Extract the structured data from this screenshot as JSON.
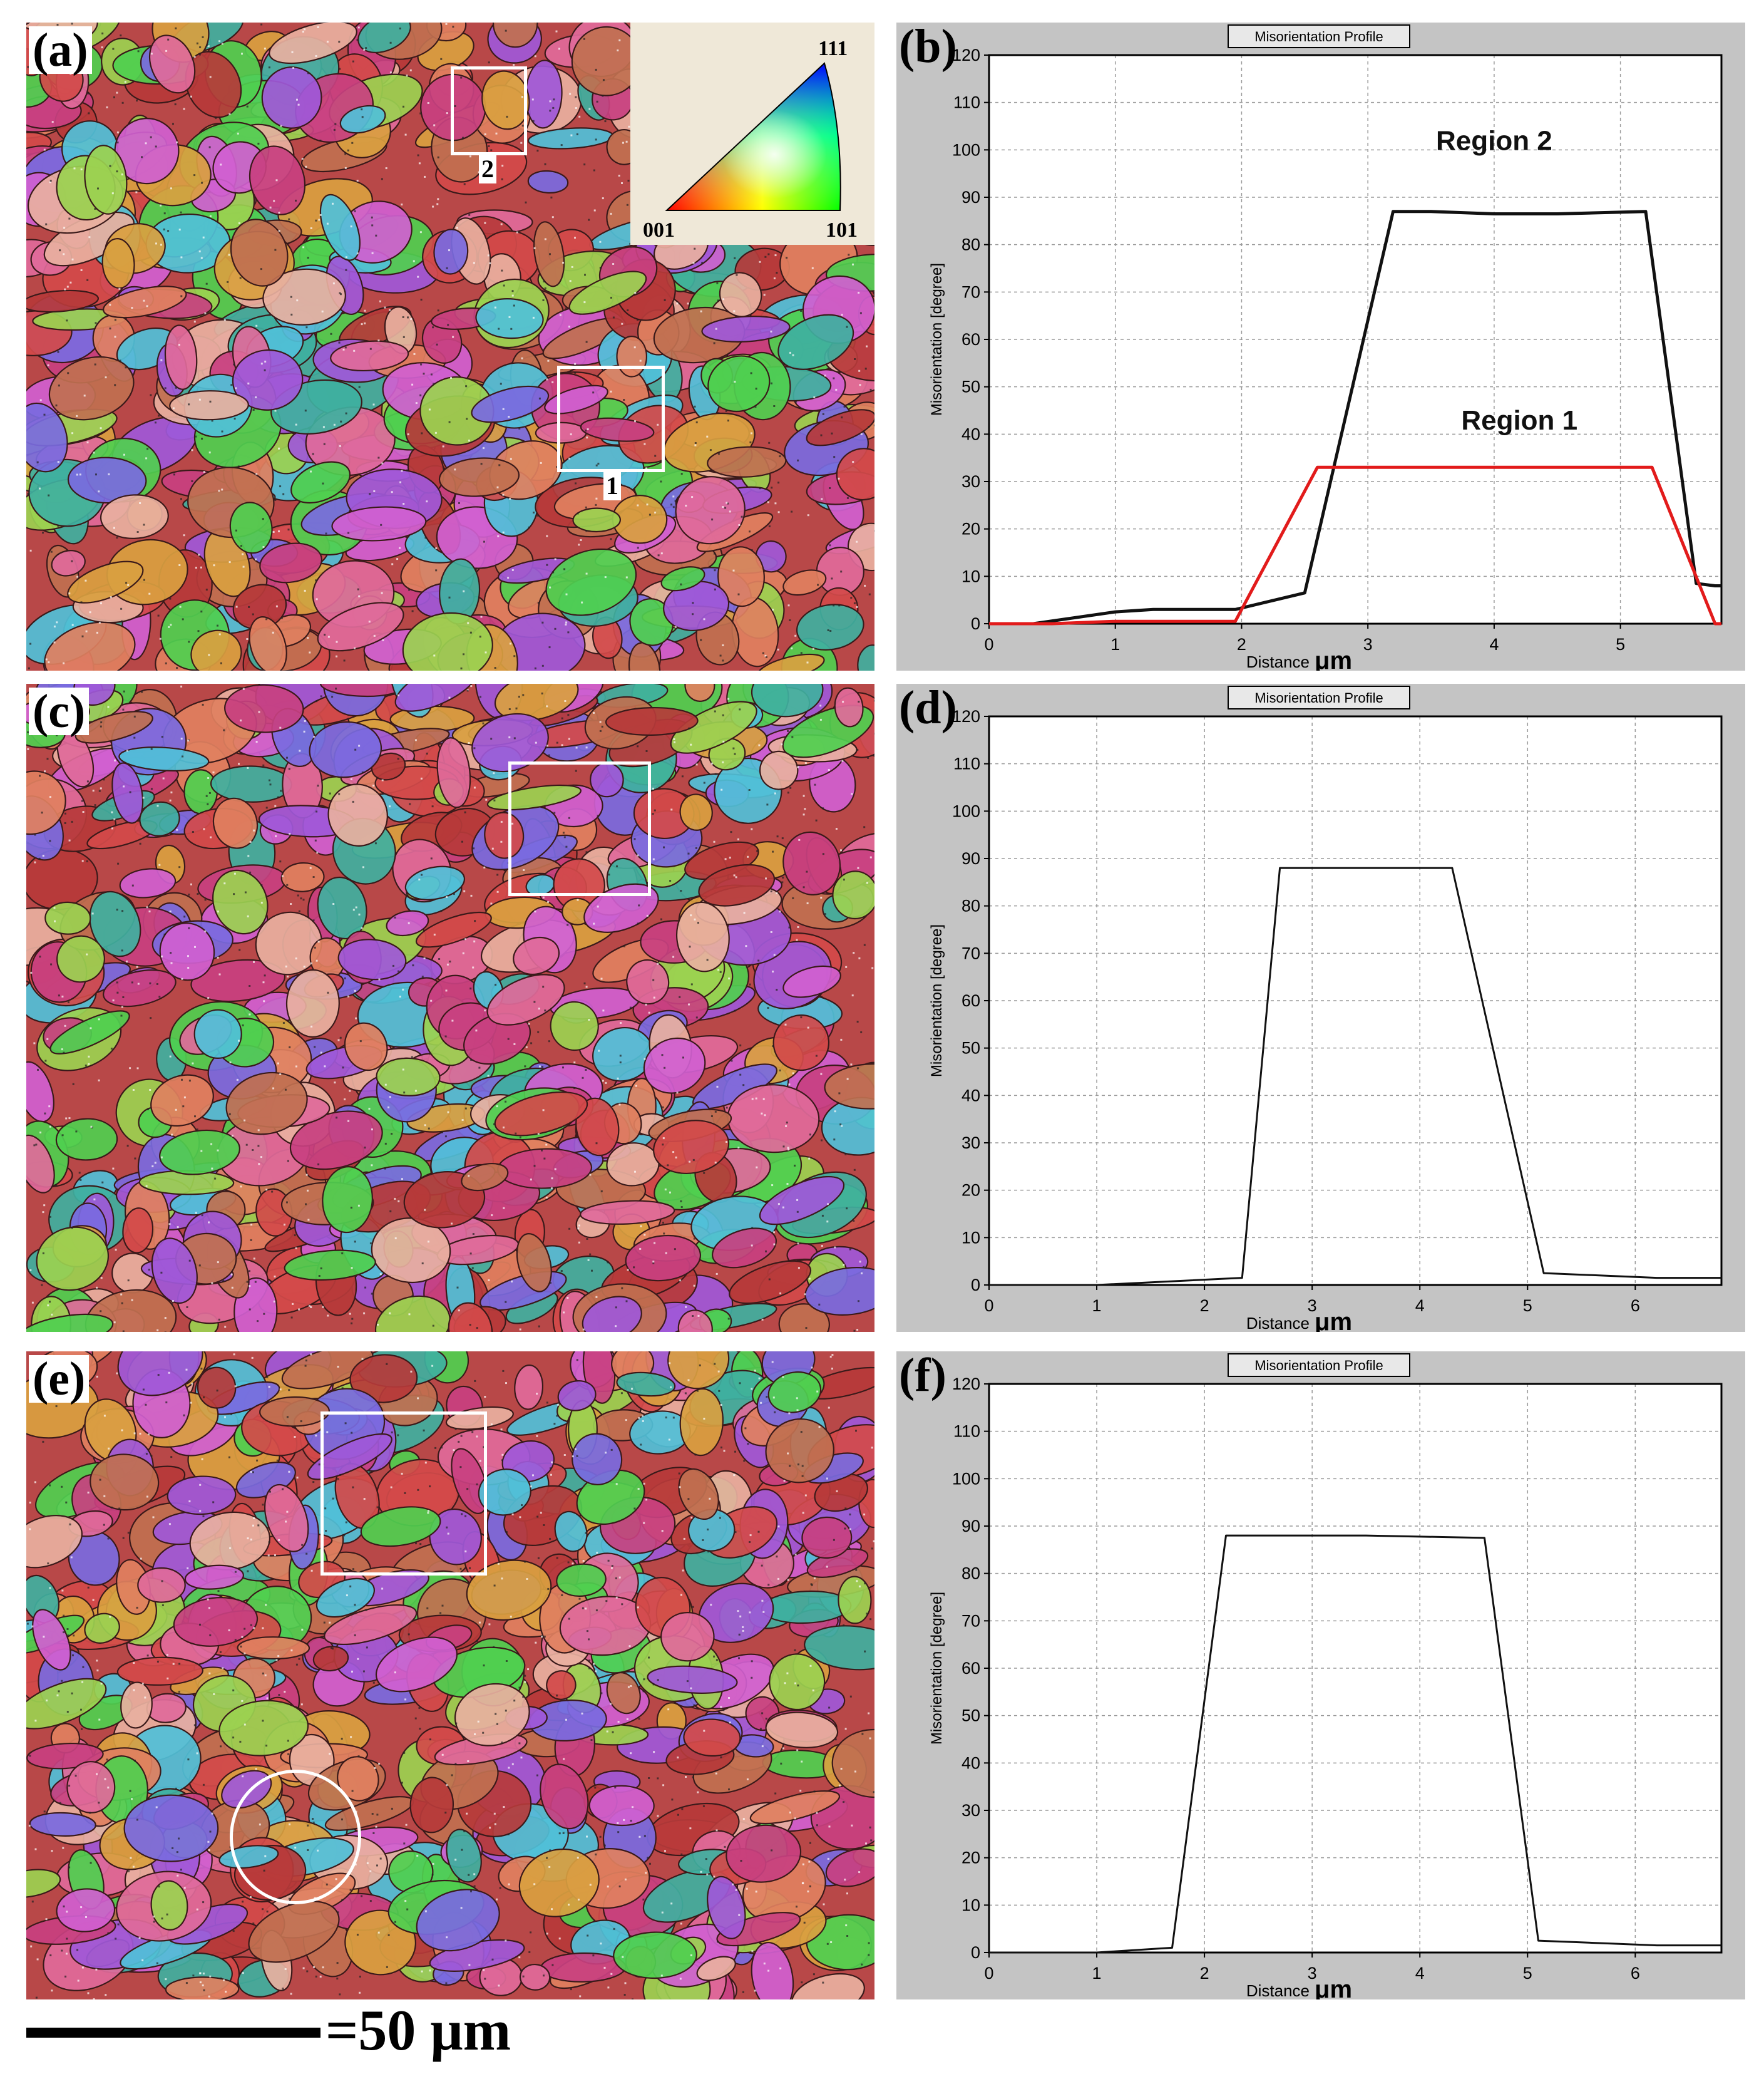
{
  "panels": {
    "a": {
      "label": "(a)",
      "markers": [
        "2",
        "1"
      ]
    },
    "b": {
      "label": "(b)"
    },
    "c": {
      "label": "(c)"
    },
    "d": {
      "label": "(d)"
    },
    "e": {
      "label": "(e)"
    },
    "f": {
      "label": "(f)"
    }
  },
  "legend_ipf": {
    "top": "111",
    "left": "001",
    "right": "101"
  },
  "scale_bar": {
    "text": "=50 μm"
  },
  "colors": {
    "grain_palette": [
      "#d24a4a",
      "#c84080",
      "#e06a9a",
      "#b63a3a",
      "#e08060",
      "#d9a040",
      "#9bd150",
      "#4fcf4f",
      "#3fb0a0",
      "#50c0d8",
      "#7a6ae0",
      "#a058d8",
      "#d060d0",
      "#e8b0a0",
      "#c07050"
    ],
    "plot_bg": "#c4c4c4",
    "region1": "#e21b1b",
    "region2": "#111111"
  },
  "chart_data": [
    {
      "panel": "b",
      "type": "line",
      "title": "Misorientation Profile",
      "xlabel": "Distance",
      "xlabel_unit": "μm",
      "ylabel": "Misorientation [degree]",
      "xlim": [
        0,
        5.8
      ],
      "ylim": [
        0,
        120
      ],
      "xticks": [
        0,
        1,
        2,
        3,
        4,
        5
      ],
      "yticks": [
        0,
        10,
        20,
        30,
        40,
        50,
        60,
        70,
        80,
        90,
        100,
        110,
        120
      ],
      "grid": true,
      "series": [
        {
          "name": "Region 2",
          "color": "#111111",
          "x": [
            0,
            0.35,
            1.0,
            1.3,
            1.95,
            2.5,
            3.2,
            3.5,
            4.0,
            4.5,
            5.2,
            5.6,
            5.75,
            5.8
          ],
          "y": [
            0,
            0,
            2.5,
            3,
            3,
            6.5,
            87,
            87,
            86.5,
            86.5,
            87,
            8.5,
            8,
            8
          ]
        },
        {
          "name": "Region 1",
          "color": "#e21b1b",
          "x": [
            0,
            0.5,
            1.0,
            1.95,
            2.6,
            3.0,
            4.0,
            5.25,
            5.75,
            5.8
          ],
          "y": [
            0,
            0,
            0.5,
            0.5,
            33,
            33,
            33,
            33,
            0,
            0
          ]
        }
      ]
    },
    {
      "panel": "d",
      "type": "line",
      "title": "Misorientation Profile",
      "xlabel": "Distance",
      "xlabel_unit": "μm",
      "ylabel": "Misorientation [degree]",
      "xlim": [
        0,
        6.8
      ],
      "ylim": [
        0,
        120
      ],
      "xticks": [
        0,
        1,
        2,
        3,
        4,
        5,
        6
      ],
      "yticks": [
        0,
        10,
        20,
        30,
        40,
        50,
        60,
        70,
        80,
        90,
        100,
        110,
        120
      ],
      "grid": true,
      "series": [
        {
          "color": "#111111",
          "x": [
            0,
            1.0,
            2.35,
            2.7,
            3.5,
            4.3,
            5.15,
            6.2,
            6.8
          ],
          "y": [
            0,
            0,
            1.5,
            88,
            88,
            88,
            2.5,
            1.5,
            1.5
          ]
        }
      ]
    },
    {
      "panel": "f",
      "type": "line",
      "title": "Misorientation Profile",
      "xlabel": "Distance",
      "xlabel_unit": "μm",
      "ylabel": "Misorientation [degree]",
      "xlim": [
        0,
        6.8
      ],
      "ylim": [
        0,
        120
      ],
      "xticks": [
        0,
        1,
        2,
        3,
        4,
        5,
        6
      ],
      "yticks": [
        0,
        10,
        20,
        30,
        40,
        50,
        60,
        70,
        80,
        90,
        100,
        110,
        120
      ],
      "grid": true,
      "series": [
        {
          "color": "#111111",
          "x": [
            0,
            1.0,
            1.7,
            2.2,
            3.5,
            4.6,
            5.1,
            6.2,
            6.8
          ],
          "y": [
            0,
            0,
            1,
            88,
            88,
            87.5,
            2.5,
            1.5,
            1.5
          ]
        }
      ]
    }
  ]
}
